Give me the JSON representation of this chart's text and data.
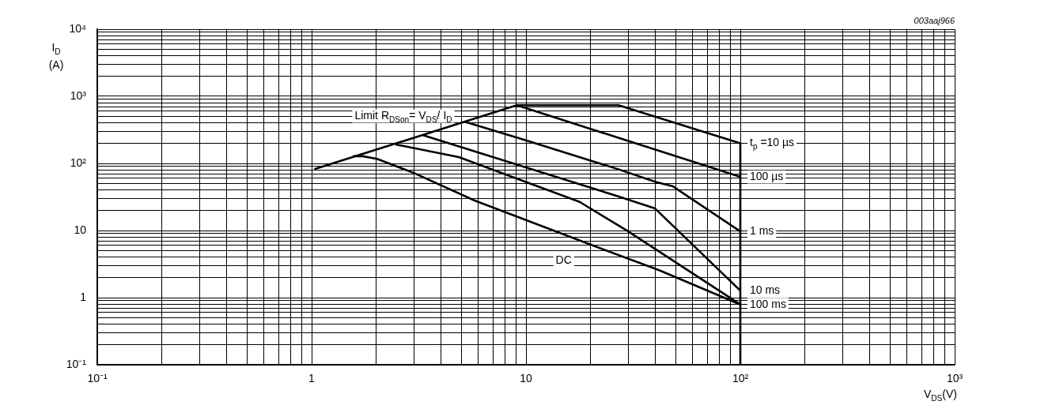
{
  "chart_data": {
    "type": "line",
    "log": "xy",
    "grid": true,
    "legend": false,
    "marker": "none",
    "line_style": "solid",
    "xlabel": "V$_{DS}$(V)",
    "ylabel": "I$_{D}$ (A)",
    "xlim": [
      0.1,
      1000
    ],
    "ylim": [
      0.1,
      10000
    ],
    "xticks": [
      {
        "value": 0.1,
        "label": "10⁻¹"
      },
      1,
      10,
      {
        "value": 100,
        "label": "10²"
      },
      {
        "value": 1000,
        "label": "10³"
      }
    ],
    "yticks": [
      {
        "value": 0.1,
        "label": "10⁻¹"
      },
      1,
      10,
      {
        "value": 100,
        "label": "10²"
      },
      {
        "value": 1000,
        "label": "10³"
      },
      {
        "value": 10000,
        "label": "10⁴"
      }
    ],
    "series": [
      {
        "name": "t$_{p}$ =10 µs",
        "color": "#000000",
        "x": [
          1.03,
          9.06,
          27,
          100
        ],
        "values": [
          82,
          736,
          736,
          200
        ]
      },
      {
        "name": "100 µs",
        "color": "#000000",
        "x": [
          9.06,
          100
        ],
        "values": [
          736,
          63
        ]
      },
      {
        "name": "1 ms",
        "color": "#000000",
        "x": [
          5.26,
          9.86,
          26.6,
          40.6,
          48.2,
          100
        ],
        "values": [
          412,
          224,
          83,
          52.6,
          46,
          9.7
        ]
      },
      {
        "name": "10 ms",
        "color": "#000000",
        "x": [
          3.31,
          26.6,
          40,
          100
        ],
        "values": [
          263,
          32.7,
          21.3,
          1.27
        ]
      },
      {
        "name": "100 ms",
        "color": "#000000",
        "x": [
          2.46,
          4.86,
          17.8,
          29.7,
          100
        ],
        "values": [
          192,
          124,
          26.7,
          9.9,
          0.79
        ]
      },
      {
        "color": "#000000",
        "x": [
          1.56,
          1.73,
          2.02,
          3.0,
          5.76,
          18.9,
          41.8,
          100
        ],
        "values": [
          128,
          128,
          117,
          72,
          28,
          6.6,
          2.56,
          0.79
        ]
      },
      {
        "color": "#000000",
        "x": [
          100,
          100
        ],
        "values": [
          200,
          0.1
        ]
      }
    ],
    "annotations": [
      "Limit R$_{DSon}$= V$_{DS}$/ I$_{D}$",
      "DC",
      "003aaj966"
    ]
  }
}
